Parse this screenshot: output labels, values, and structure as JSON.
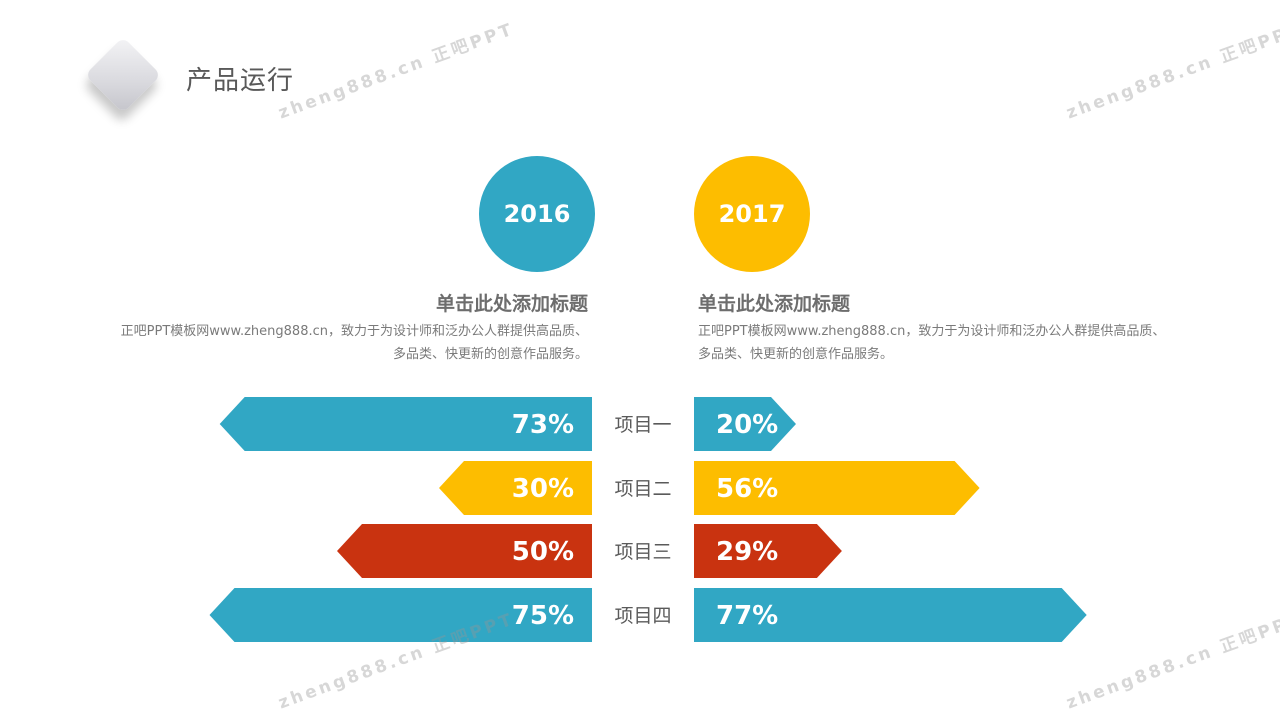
{
  "page": {
    "title": "产品运行"
  },
  "watermark": {
    "text": "zheng888.cn 正吧PPT"
  },
  "columns": {
    "left": {
      "year": "2016",
      "heading": "单击此处添加标题",
      "description": "正吧PPT模板网www.zheng888.cn，致力于为设计师和泛办公人群提供高品质、多品类、快更新的创意作品服务。"
    },
    "right": {
      "year": "2017",
      "heading": "单击此处添加标题",
      "description": "正吧PPT模板网www.zheng888.cn，致力于为设计师和泛办公人群提供高品质、多品类、快更新的创意作品服务。"
    }
  },
  "colors": {
    "blue": "#31a7c4",
    "yellow": "#fdbd00",
    "red": "#c93310",
    "title_gray": "#595959"
  },
  "chart_data": {
    "type": "bar",
    "layout": "butterfly",
    "categories": [
      "项目一",
      "项目二",
      "项目三",
      "项目四"
    ],
    "series": [
      {
        "name": "2016",
        "side": "left",
        "values": [
          73,
          30,
          50,
          75
        ],
        "labels": [
          "73%",
          "30%",
          "50%",
          "75%"
        ],
        "colors": [
          "#31a7c4",
          "#fdbd00",
          "#c93310",
          "#31a7c4"
        ]
      },
      {
        "name": "2017",
        "side": "right",
        "values": [
          20,
          56,
          29,
          77
        ],
        "labels": [
          "20%",
          "56%",
          "29%",
          "77%"
        ],
        "colors": [
          "#31a7c4",
          "#fdbd00",
          "#c93310",
          "#31a7c4"
        ]
      }
    ],
    "unit": "%",
    "xlim": [
      0,
      100
    ],
    "grid": false,
    "legend": "none"
  }
}
